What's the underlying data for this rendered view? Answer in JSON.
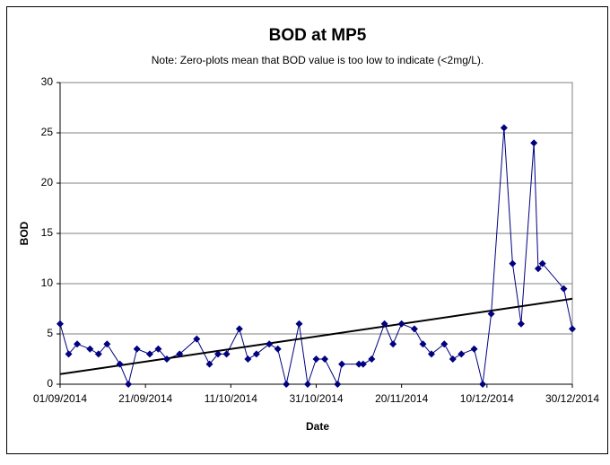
{
  "chart_data": {
    "type": "line",
    "title": "BOD at MP5",
    "subtitle": "Note: Zero-plots mean that BOD value is too low to indicate (<2mg/L).",
    "x_label": "Date",
    "y_label": "BOD",
    "x": [
      "2014-09-01",
      "2014-09-03",
      "2014-09-05",
      "2014-09-08",
      "2014-09-10",
      "2014-09-12",
      "2014-09-15",
      "2014-09-17",
      "2014-09-19",
      "2014-09-22",
      "2014-09-24",
      "2014-09-26",
      "2014-09-29",
      "2014-10-03",
      "2014-10-06",
      "2014-10-08",
      "2014-10-10",
      "2014-10-13",
      "2014-10-15",
      "2014-10-17",
      "2014-10-20",
      "2014-10-22",
      "2014-10-24",
      "2014-10-27",
      "2014-10-29",
      "2014-10-31",
      "2014-11-02",
      "2014-11-05",
      "2014-11-06",
      "2014-11-10",
      "2014-11-11",
      "2014-11-13",
      "2014-11-16",
      "2014-11-18",
      "2014-11-20",
      "2014-11-23",
      "2014-11-25",
      "2014-11-27",
      "2014-11-30",
      "2014-12-02",
      "2014-12-04",
      "2014-12-07",
      "2014-12-09",
      "2014-12-11",
      "2014-12-14",
      "2014-12-16",
      "2014-12-18",
      "2014-12-21",
      "2014-12-22",
      "2014-12-23",
      "2014-12-28",
      "2014-12-30"
    ],
    "values": [
      6,
      3,
      4,
      3.5,
      3,
      4,
      2,
      0,
      3.5,
      3,
      3.5,
      2.5,
      3,
      4.5,
      2,
      3,
      3,
      5.5,
      2.5,
      3,
      4,
      3.5,
      0,
      6,
      0,
      2.5,
      2.5,
      0,
      2,
      2,
      2,
      2.5,
      6,
      4,
      6,
      5.5,
      4,
      3,
      4,
      2.5,
      3,
      3.5,
      0,
      7,
      25.5,
      12,
      6,
      24,
      11.5,
      12,
      9.5,
      5.5
    ],
    "color": "#000080",
    "trendline": {
      "start": 1,
      "end": 8.5,
      "color": "#000000"
    },
    "xlim": [
      "2014-09-01",
      "2014-12-30"
    ],
    "xticks": [
      {
        "value": "2014-09-01",
        "label": "01/09/2014"
      },
      {
        "value": "2014-09-21",
        "label": "21/09/2014"
      },
      {
        "value": "2014-10-11",
        "label": "11/10/2014"
      },
      {
        "value": "2014-10-31",
        "label": "31/10/2014"
      },
      {
        "value": "2014-11-20",
        "label": "20/11/2014"
      },
      {
        "value": "2014-12-10",
        "label": "10/12/2014"
      },
      {
        "value": "2014-12-30",
        "label": "30/12/2014"
      }
    ],
    "ylim": [
      0,
      30
    ],
    "yticks": [
      0,
      5,
      10,
      15,
      20,
      25,
      30
    ],
    "grid": true
  }
}
